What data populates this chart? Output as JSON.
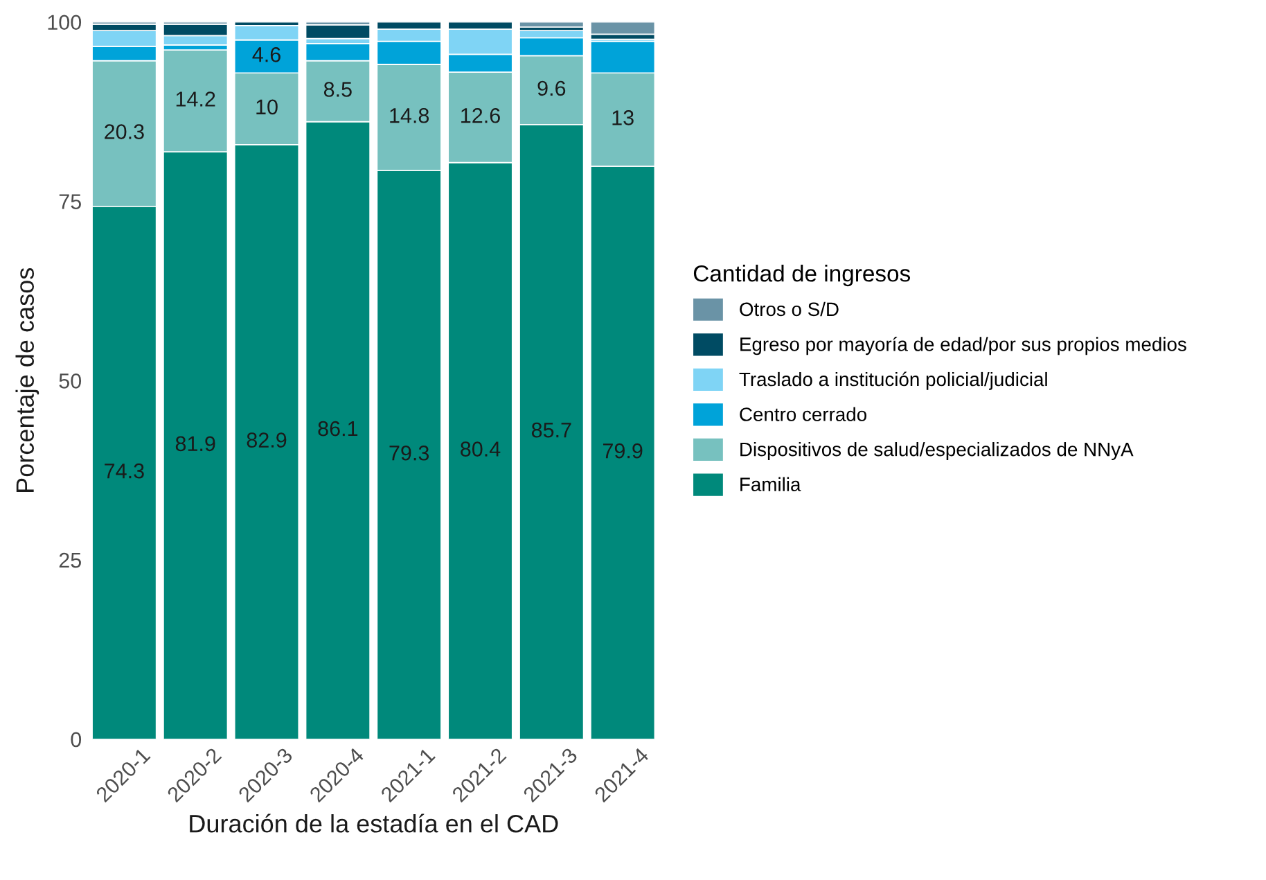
{
  "chart_data": {
    "type": "bar",
    "stacked": true,
    "xlabel": "Duración de la estadía en el CAD",
    "ylabel": "Porcentaje de casos",
    "legend_title": "Cantidad de ingresos",
    "legend": "right",
    "categories": [
      "2020-1",
      "2020-2",
      "2020-3",
      "2020-4",
      "2021-1",
      "2021-2",
      "2021-3",
      "2021-4"
    ],
    "ylim": [
      0,
      100
    ],
    "yticks": [
      0,
      25,
      50,
      75,
      100
    ],
    "grid": false,
    "series": [
      {
        "name": "Familia",
        "color": "#00897b",
        "values": [
          74.3,
          81.9,
          82.9,
          86.1,
          79.3,
          80.4,
          85.7,
          79.9
        ],
        "value_labels": [
          "74.3",
          "81.9",
          "82.9",
          "86.1",
          "79.3",
          "80.4",
          "85.7",
          "79.9"
        ]
      },
      {
        "name": "Dispositivos de salud/especializados de NNyA",
        "color": "#77c1bf",
        "values": [
          20.3,
          14.2,
          10,
          8.5,
          14.8,
          12.6,
          9.6,
          13
        ],
        "value_labels": [
          "20.3",
          "14.2",
          "10",
          "8.5",
          "14.8",
          "12.6",
          "9.6",
          "13"
        ]
      },
      {
        "name": "Centro cerrado",
        "color": "#00a3d9",
        "values": [
          2.0,
          0.7,
          4.6,
          2.4,
          3.2,
          2.5,
          2.5,
          4.4
        ],
        "value_labels": [
          null,
          null,
          "4.6",
          null,
          null,
          null,
          null,
          null
        ]
      },
      {
        "name": "Traslado a institución policial/judicial",
        "color": "#7fd4f5",
        "values": [
          2.2,
          1.3,
          2.0,
          0.7,
          1.7,
          3.5,
          1.0,
          0.3
        ]
      },
      {
        "name": "Egreso por mayoría de edad/por sus propios medios",
        "color": "#004b63",
        "values": [
          0.9,
          1.6,
          0.5,
          1.9,
          1.0,
          1.0,
          0.5,
          0.7
        ]
      },
      {
        "name": "Otros o S/D",
        "color": "#6a93a6",
        "values": [
          0.3,
          0.3,
          null,
          0.4,
          null,
          null,
          0.7,
          1.7
        ]
      }
    ]
  }
}
